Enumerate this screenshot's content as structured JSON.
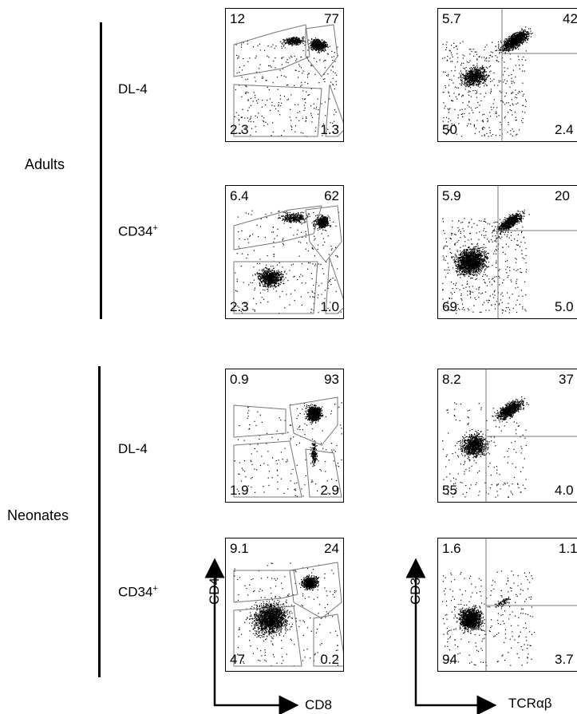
{
  "groups": [
    {
      "label": "Adults",
      "conditions": [
        {
          "label": "DL-4",
          "cd4_cd8": {
            "tl": "12",
            "tr": "77",
            "bl": "2.3",
            "br": "1.3"
          },
          "cd3_tcr": {
            "tl": "5.7",
            "tr": "42",
            "bl": "50",
            "br": "2.4"
          }
        },
        {
          "label": "CD34+",
          "cd4_cd8": {
            "tl": "6.4",
            "tr": "62",
            "bl": "2.3",
            "br": "1.0"
          },
          "cd3_tcr": {
            "tl": "5.9",
            "tr": "20",
            "bl": "69",
            "br": "5.0"
          }
        }
      ]
    },
    {
      "label": "Neonates",
      "conditions": [
        {
          "label": "DL-4",
          "cd4_cd8": {
            "tl": "0.9",
            "tr": "93",
            "bl": "1.9",
            "br": "2.9"
          },
          "cd3_tcr": {
            "tl": "8.2",
            "tr": "37",
            "bl": "55",
            "br": "4.0"
          }
        },
        {
          "label": "CD34+",
          "cd4_cd8": {
            "tl": "9.1",
            "tr": "24",
            "bl": "47",
            "br": "0.2"
          },
          "cd3_tcr": {
            "tl": "1.6",
            "tr": "1.1",
            "bl": "94",
            "br": "3.7"
          }
        }
      ]
    }
  ],
  "axes": {
    "cd4_cd8": {
      "y_label": "CD4",
      "x_label": "CD8"
    },
    "cd3_tcr": {
      "y_label": "CD3",
      "x_label": "TCRαβ"
    }
  }
}
